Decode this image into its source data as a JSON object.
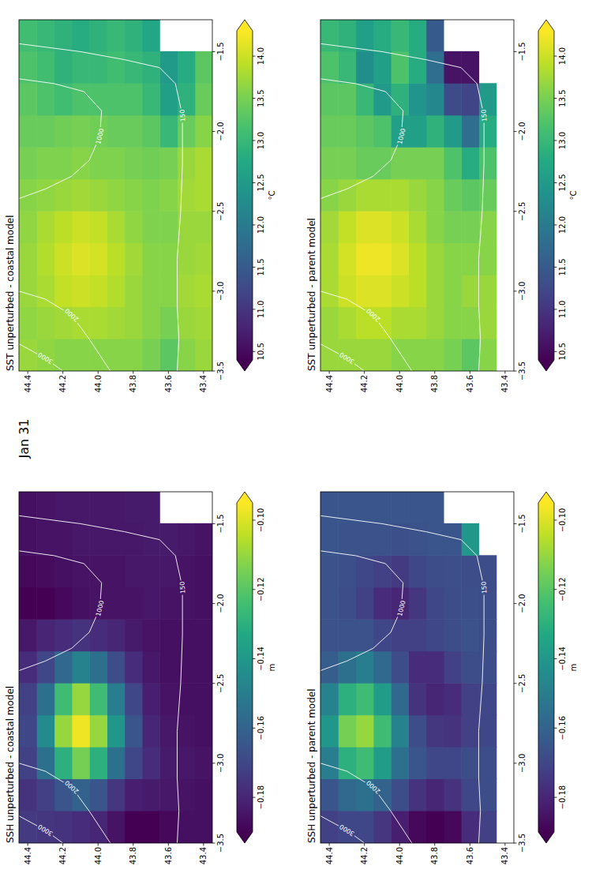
{
  "chart_data": {
    "type": "heatmap",
    "title": "Jan 31",
    "xlim": [
      -3.5,
      -1.3
    ],
    "ylim": [
      43.35,
      44.45
    ],
    "xticks": [
      {
        "value": -3.5,
        "label": "−3.5"
      },
      {
        "value": -3,
        "label": "−3.0"
      },
      {
        "value": -2.5,
        "label": "−2.5"
      },
      {
        "value": -2,
        "label": "−2.0"
      },
      {
        "value": -1.5,
        "label": "−1.5"
      }
    ],
    "yticks": [
      43.4,
      43.6,
      43.8,
      {
        "value": 44,
        "label": "44.0"
      },
      44.2,
      44.4
    ],
    "x": [
      -3.4,
      -3.2,
      -3.0,
      -2.8,
      -2.6,
      -2.4,
      -2.2,
      -2.0,
      -1.8,
      -1.6,
      -1.4
    ],
    "y": [
      43.4,
      43.5,
      43.6,
      43.7,
      43.8,
      43.9,
      44.0,
      44.1,
      44.2,
      44.3,
      44.4
    ],
    "contours": [
      {
        "level": 3000,
        "x": [
          -3.5,
          -3.42,
          -3.33
        ],
        "y": [
          44.2,
          44.3,
          44.45
        ]
      },
      {
        "level": 2000,
        "x": [
          -3.5,
          -3.3,
          -3.15,
          -3.05,
          -3.0
        ],
        "y": [
          43.93,
          44.05,
          44.15,
          44.3,
          44.45
        ]
      },
      {
        "level": 1000,
        "x": [
          -2.42,
          -2.36,
          -2.28,
          -2.18,
          -2.03,
          -1.87,
          -1.75,
          -1.7,
          -1.67
        ],
        "y": [
          44.45,
          44.3,
          44.15,
          44.05,
          43.99,
          43.98,
          44.08,
          44.25,
          44.45
        ]
      },
      {
        "level": 150,
        "x": [
          -3.5,
          -3.3,
          -3.09,
          -2.8,
          -2.5,
          -2.2,
          -1.9,
          -1.7,
          -1.6,
          -1.55,
          -1.5,
          -1.45
        ],
        "y": [
          43.55,
          43.54,
          43.55,
          43.55,
          43.53,
          43.52,
          43.52,
          43.56,
          43.65,
          43.85,
          44.1,
          44.45
        ]
      }
    ],
    "panels": [
      {
        "title": "SSH unperturbed - coastal model",
        "colorbar_label": "m",
        "color_range": [
          -0.19,
          -0.095
        ],
        "color_ticks": [
          {
            "value": -0.18,
            "label": "−0.18"
          },
          {
            "value": -0.16,
            "label": "−0.16"
          },
          {
            "value": -0.14,
            "label": "−0.14"
          },
          {
            "value": -0.12,
            "label": "−0.12"
          },
          {
            "value": -0.1,
            "label": "−0.10"
          }
        ],
        "values": [
          [
            -0.186,
            -0.186,
            -0.185,
            -0.186,
            -0.186,
            -0.186,
            -0.186,
            -0.186,
            -0.186,
            -0.185,
            null
          ],
          [
            -0.186,
            -0.185,
            -0.184,
            -0.185,
            -0.186,
            -0.186,
            -0.186,
            -0.185,
            -0.185,
            -0.184,
            null
          ],
          [
            -0.188,
            -0.184,
            -0.183,
            -0.184,
            -0.185,
            -0.186,
            -0.186,
            -0.185,
            -0.184,
            -0.183,
            null
          ],
          [
            -0.19,
            -0.183,
            -0.178,
            -0.18,
            -0.182,
            -0.184,
            -0.185,
            -0.184,
            -0.184,
            -0.183,
            -0.183
          ],
          [
            -0.19,
            -0.182,
            -0.17,
            -0.165,
            -0.17,
            -0.178,
            -0.183,
            -0.185,
            -0.184,
            -0.184,
            -0.183
          ],
          [
            -0.185,
            -0.175,
            -0.155,
            -0.14,
            -0.15,
            -0.168,
            -0.18,
            -0.185,
            -0.185,
            -0.184,
            -0.184
          ],
          [
            -0.18,
            -0.165,
            -0.13,
            -0.11,
            -0.125,
            -0.155,
            -0.178,
            -0.185,
            -0.185,
            -0.184,
            -0.184
          ],
          [
            -0.178,
            -0.16,
            -0.115,
            -0.097,
            -0.11,
            -0.148,
            -0.176,
            -0.186,
            -0.185,
            -0.184,
            -0.184
          ],
          [
            -0.176,
            -0.165,
            -0.13,
            -0.11,
            -0.125,
            -0.158,
            -0.178,
            -0.188,
            -0.186,
            -0.185,
            -0.184
          ],
          [
            -0.175,
            -0.172,
            -0.155,
            -0.145,
            -0.155,
            -0.17,
            -0.18,
            -0.19,
            -0.187,
            -0.185,
            -0.185
          ],
          [
            -0.174,
            -0.176,
            -0.172,
            -0.17,
            -0.172,
            -0.178,
            -0.184,
            -0.19,
            -0.188,
            -0.186,
            -0.186
          ]
        ]
      },
      {
        "title": "SST unperturbed - coastal model",
        "colorbar_label": "°C",
        "color_range": [
          10.4,
          14.3
        ],
        "color_ticks": [
          10.5,
          {
            "value": 11,
            "label": "11.0"
          },
          11.5,
          {
            "value": 12,
            "label": "12.0"
          },
          12.5,
          {
            "value": 13,
            "label": "13.0"
          },
          13.5,
          {
            "value": 14,
            "label": "14.0"
          }
        ],
        "values": [
          [
            13.7,
            13.75,
            13.8,
            13.75,
            13.7,
            13.8,
            13.8,
            13.6,
            13.4,
            13.3,
            null
          ],
          [
            13.6,
            13.7,
            13.75,
            13.7,
            13.7,
            13.75,
            13.7,
            13.4,
            12.9,
            12.8,
            null
          ],
          [
            13.3,
            13.5,
            13.6,
            13.6,
            13.55,
            13.6,
            13.5,
            13.0,
            12.6,
            12.5,
            null
          ],
          [
            13.5,
            13.6,
            13.6,
            13.6,
            13.55,
            13.55,
            13.45,
            13.3,
            13.0,
            12.9,
            12.7
          ],
          [
            13.6,
            13.7,
            13.7,
            13.75,
            13.65,
            13.6,
            13.5,
            13.4,
            13.2,
            13.0,
            12.9
          ],
          [
            13.6,
            13.75,
            13.85,
            13.9,
            13.8,
            13.65,
            13.55,
            13.4,
            13.2,
            13.1,
            13.0
          ],
          [
            13.6,
            13.8,
            13.95,
            14.05,
            13.95,
            13.7,
            13.55,
            13.45,
            13.2,
            13.0,
            12.9
          ],
          [
            13.6,
            13.8,
            14.0,
            14.1,
            14.0,
            13.75,
            13.6,
            13.5,
            13.2,
            13.0,
            12.8
          ],
          [
            13.6,
            13.75,
            13.95,
            14.0,
            13.9,
            13.7,
            13.55,
            13.45,
            13.1,
            12.9,
            12.9
          ],
          [
            13.65,
            13.7,
            13.8,
            13.85,
            13.8,
            13.65,
            13.55,
            13.4,
            13.2,
            13.1,
            13.0
          ],
          [
            13.7,
            13.65,
            13.7,
            13.7,
            13.65,
            13.6,
            13.5,
            13.4,
            13.3,
            13.2,
            13.1
          ]
        ]
      },
      {
        "title": "SSH unperturbed - parent model",
        "colorbar_label": "m",
        "color_range": [
          -0.19,
          -0.095
        ],
        "color_ticks": [
          {
            "value": -0.18,
            "label": "−0.18"
          },
          {
            "value": -0.16,
            "label": "−0.16"
          },
          {
            "value": -0.14,
            "label": "−0.14"
          },
          {
            "value": -0.12,
            "label": "−0.12"
          },
          {
            "value": -0.1,
            "label": "−0.10"
          }
        ],
        "values": [
          [
            null,
            null,
            null,
            null,
            null,
            null,
            null,
            null,
            null,
            null,
            null
          ],
          [
            -0.172,
            -0.168,
            -0.168,
            -0.17,
            -0.17,
            -0.168,
            -0.168,
            -0.168,
            -0.168,
            null,
            null
          ],
          [
            -0.178,
            -0.17,
            -0.168,
            -0.172,
            -0.172,
            -0.168,
            -0.166,
            -0.167,
            -0.168,
            -0.14,
            null
          ],
          [
            -0.188,
            -0.176,
            -0.17,
            -0.176,
            -0.178,
            -0.172,
            -0.168,
            -0.168,
            -0.167,
            -0.165,
            null
          ],
          [
            -0.19,
            -0.18,
            -0.17,
            -0.175,
            -0.18,
            -0.178,
            -0.17,
            -0.17,
            -0.168,
            -0.165,
            -0.165
          ],
          [
            -0.188,
            -0.176,
            -0.165,
            -0.168,
            -0.176,
            -0.178,
            -0.172,
            -0.175,
            -0.17,
            -0.166,
            -0.165
          ],
          [
            -0.182,
            -0.168,
            -0.155,
            -0.148,
            -0.158,
            -0.168,
            -0.172,
            -0.18,
            -0.174,
            -0.167,
            -0.165
          ],
          [
            -0.175,
            -0.16,
            -0.138,
            -0.125,
            -0.138,
            -0.158,
            -0.17,
            -0.178,
            -0.172,
            -0.166,
            -0.165
          ],
          [
            -0.17,
            -0.155,
            -0.125,
            -0.11,
            -0.125,
            -0.15,
            -0.166,
            -0.172,
            -0.17,
            -0.166,
            -0.165
          ],
          [
            -0.17,
            -0.158,
            -0.13,
            -0.115,
            -0.13,
            -0.155,
            -0.166,
            -0.168,
            -0.167,
            -0.166,
            -0.165
          ],
          [
            -0.172,
            -0.165,
            -0.15,
            -0.14,
            -0.148,
            -0.162,
            -0.166,
            -0.166,
            -0.166,
            -0.165,
            -0.165
          ]
        ]
      },
      {
        "title": "SST unperturbed - parent model",
        "colorbar_label": "°C",
        "color_range": [
          10.4,
          14.3
        ],
        "color_ticks": [
          10.5,
          {
            "value": 11,
            "label": "11.0"
          },
          11.5,
          {
            "value": 12,
            "label": "12.0"
          },
          12.5,
          {
            "value": 13,
            "label": "13.0"
          },
          13.5,
          {
            "value": 14,
            "label": "14.0"
          }
        ],
        "values": [
          [
            null,
            null,
            null,
            null,
            null,
            null,
            null,
            null,
            null,
            null,
            null
          ],
          [
            13.6,
            13.7,
            13.7,
            13.6,
            13.6,
            13.4,
            13.2,
            12.8,
            12.5,
            null,
            null
          ],
          [
            13.3,
            13.6,
            13.7,
            13.6,
            13.5,
            13.3,
            12.8,
            11.8,
            11.2,
            10.6,
            null
          ],
          [
            13.5,
            13.6,
            13.6,
            13.6,
            13.5,
            13.4,
            13.2,
            12.5,
            11.3,
            10.6,
            null
          ],
          [
            13.6,
            13.7,
            13.7,
            13.7,
            13.6,
            13.6,
            13.5,
            12.9,
            12.2,
            11.8,
            11.5
          ],
          [
            13.6,
            13.8,
            13.9,
            13.9,
            13.8,
            13.7,
            13.5,
            12.6,
            12.4,
            12.8,
            12.8
          ],
          [
            13.6,
            13.8,
            14.0,
            14.1,
            14.0,
            13.8,
            13.5,
            12.6,
            12.9,
            13.2,
            13.0
          ],
          [
            13.7,
            13.9,
            14.1,
            14.2,
            14.1,
            13.8,
            13.4,
            13.2,
            12.5,
            12.6,
            12.8
          ],
          [
            13.7,
            13.9,
            14.1,
            14.2,
            14.1,
            13.8,
            13.4,
            13.3,
            13.0,
            12.3,
            12.6
          ],
          [
            13.7,
            13.8,
            14.0,
            14.05,
            13.95,
            13.7,
            13.5,
            13.4,
            13.3,
            13.0,
            12.9
          ],
          [
            13.7,
            13.7,
            13.8,
            13.8,
            13.75,
            13.6,
            13.5,
            13.4,
            13.3,
            13.2,
            13.0
          ]
        ]
      }
    ]
  }
}
